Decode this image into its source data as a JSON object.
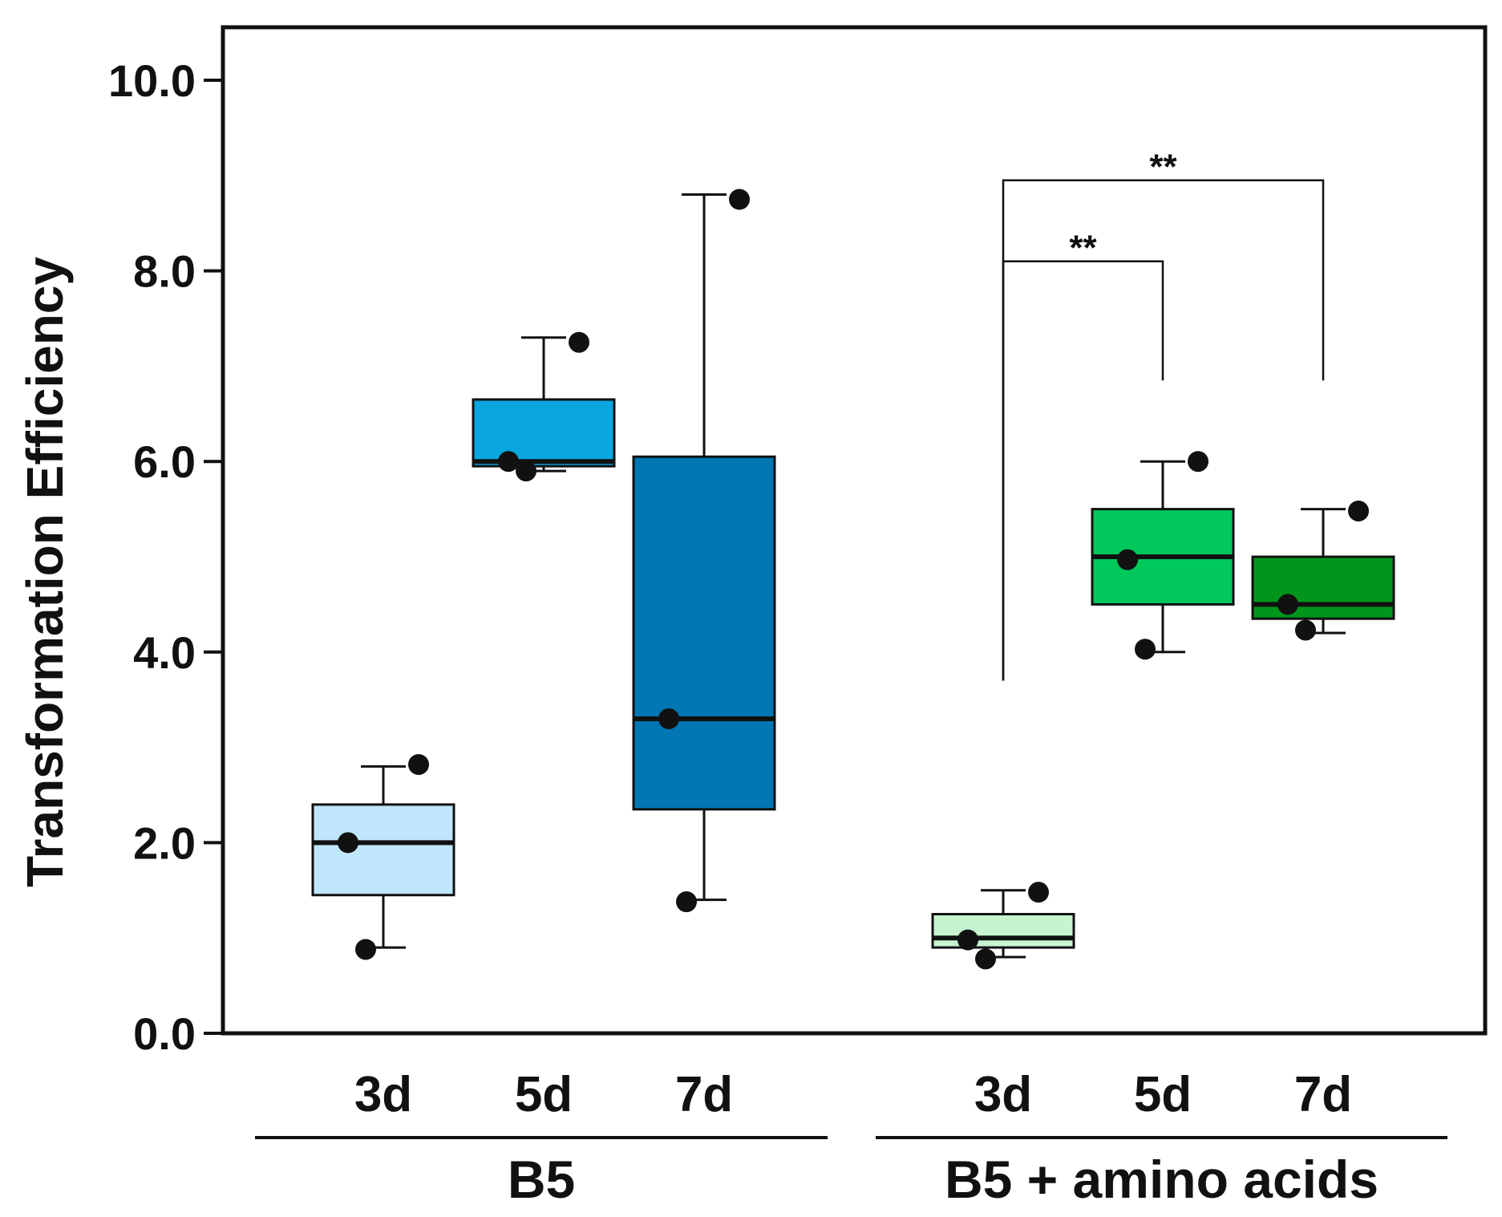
{
  "chart_data": {
    "type": "box",
    "ylabel": "Transformation Efficiency",
    "ylim": [
      0,
      10.5
    ],
    "yticks": [
      0,
      2,
      4,
      6,
      8,
      10
    ],
    "ytick_labels": [
      "0.0",
      "2.0",
      "4.0",
      "6.0",
      "8.0",
      "10.0"
    ],
    "groups": [
      {
        "name": "B5",
        "boxes": [
          {
            "category": "3d",
            "color": "#bfe6fb",
            "whisker_low": 0.9,
            "q1": 1.45,
            "median": 2.0,
            "q3": 2.4,
            "whisker_high": 2.8,
            "points": [
              2.82,
              2.0,
              0.88
            ]
          },
          {
            "category": "5d",
            "color": "#0aa6e0",
            "whisker_low": 5.9,
            "q1": 5.95,
            "median": 6.0,
            "q3": 6.65,
            "whisker_high": 7.3,
            "points": [
              7.25,
              6.0,
              5.9
            ]
          },
          {
            "category": "7d",
            "color": "#0076b2",
            "whisker_low": 1.4,
            "q1": 2.35,
            "median": 3.3,
            "q3": 6.05,
            "whisker_high": 8.8,
            "points": [
              8.75,
              3.3,
              1.38
            ]
          }
        ]
      },
      {
        "name": "B5 + amino acids",
        "boxes": [
          {
            "category": "3d",
            "color": "#c6f4cf",
            "whisker_low": 0.8,
            "q1": 0.9,
            "median": 1.0,
            "q3": 1.25,
            "whisker_high": 1.5,
            "points": [
              1.48,
              0.98,
              0.78
            ]
          },
          {
            "category": "5d",
            "color": "#00c85a",
            "whisker_low": 4.0,
            "q1": 4.5,
            "median": 5.0,
            "q3": 5.5,
            "whisker_high": 6.0,
            "points": [
              6.0,
              4.97,
              4.03
            ]
          },
          {
            "category": "7d",
            "color": "#00961c",
            "whisker_low": 4.2,
            "q1": 4.35,
            "median": 4.5,
            "q3": 5.0,
            "whisker_high": 5.5,
            "points": [
              5.48,
              4.5,
              4.23
            ]
          }
        ]
      }
    ],
    "significance": [
      {
        "from": "B5 + amino acids 3d",
        "to": "B5 + amino acids 5d",
        "label": "**",
        "bracket_y": 8.1,
        "left_bottom": 3.7,
        "right_bottom": 6.85
      },
      {
        "from": "B5 + amino acids 3d",
        "to": "B5 + amino acids 7d",
        "label": "**",
        "bracket_y": 8.95,
        "left_bottom": 3.7,
        "right_bottom": 6.85
      }
    ]
  }
}
